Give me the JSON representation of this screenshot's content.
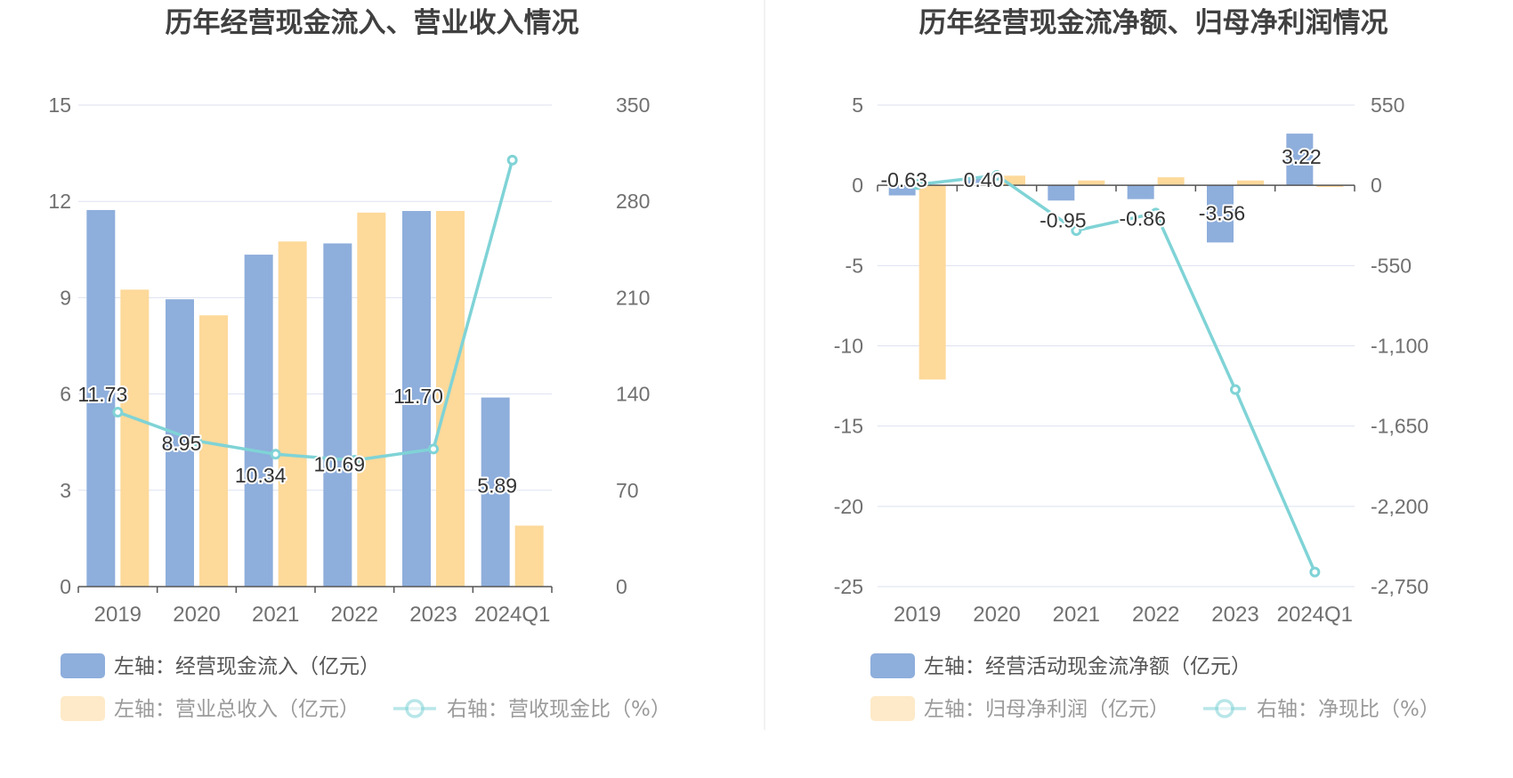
{
  "colors": {
    "bar_primary": "#8eaedc",
    "bar_secondary": "#fdd99a",
    "line": "#7fd3d6",
    "grid": "#dde2ef",
    "axis": "#555555"
  },
  "chart_data": [
    {
      "type": "bar",
      "title": "历年经营现金流入、营业收入情况",
      "categories": [
        "2019",
        "2020",
        "2021",
        "2022",
        "2023",
        "2024Q1"
      ],
      "left_axis": {
        "ticks": [
          "0",
          "3",
          "6",
          "9",
          "12",
          "15"
        ],
        "range": [
          0,
          15
        ]
      },
      "right_axis": {
        "ticks": [
          "0",
          "70",
          "140",
          "210",
          "280",
          "350"
        ],
        "range": [
          0,
          350
        ]
      },
      "series": [
        {
          "name": "左轴：经营现金流入（亿元）",
          "kind": "bar",
          "axis": "left",
          "values": [
            11.73,
            8.95,
            10.34,
            10.69,
            11.7,
            5.89
          ],
          "labels": [
            "11.73",
            "8.95",
            "10.34",
            "10.69",
            "11.70",
            "5.89"
          ]
        },
        {
          "name": "左轴：营业总收入（亿元）",
          "kind": "bar",
          "axis": "left",
          "values": [
            9.25,
            8.45,
            10.75,
            11.65,
            11.7,
            1.9
          ]
        },
        {
          "name": "右轴：营收现金比（%）",
          "kind": "line",
          "axis": "right",
          "values": [
            126.8,
            105.9,
            96.2,
            91.8,
            100.0,
            310.0
          ]
        }
      ]
    },
    {
      "type": "bar",
      "title": "历年经营现金流净额、归母净利润情况",
      "categories": [
        "2019",
        "2020",
        "2021",
        "2022",
        "2023",
        "2024Q1"
      ],
      "left_axis": {
        "ticks": [
          "5",
          "0",
          "-5",
          "-10",
          "-15",
          "-20",
          "-25"
        ],
        "range": [
          -25,
          5
        ]
      },
      "right_axis": {
        "ticks": [
          "550",
          "0",
          "-550",
          "-1,100",
          "-1,650",
          "-2,200",
          "-2,750"
        ],
        "range": [
          -2750,
          550
        ]
      },
      "series": [
        {
          "name": "左轴：经营活动现金流净额（亿元）",
          "kind": "bar",
          "axis": "left",
          "values": [
            -0.63,
            0.4,
            -0.95,
            -0.86,
            -3.56,
            3.22
          ],
          "labels": [
            "-0.63",
            "0.40",
            "-0.95",
            "-0.86",
            "-3.56",
            "3.22"
          ]
        },
        {
          "name": "左轴：归母净利润（亿元）",
          "kind": "bar",
          "axis": "left",
          "values": [
            -12.1,
            0.6,
            0.3,
            0.5,
            0.3,
            -0.1
          ]
        },
        {
          "name": "右轴：净现比（%）",
          "kind": "line",
          "axis": "right",
          "values": [
            5,
            68,
            -310,
            -190,
            -1400,
            -2650
          ]
        }
      ]
    }
  ]
}
